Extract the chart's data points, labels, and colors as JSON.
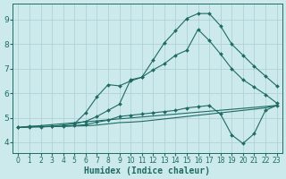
{
  "xlabel": "Humidex (Indice chaleur)",
  "bg_color": "#cce9ec",
  "grid_color": "#aacfd4",
  "line_color": "#1e6b63",
  "x_ticks": [
    0,
    1,
    2,
    3,
    4,
    5,
    6,
    7,
    8,
    9,
    10,
    11,
    12,
    13,
    14,
    15,
    16,
    17,
    18,
    19,
    20,
    21,
    22,
    23
  ],
  "y_ticks": [
    4,
    5,
    6,
    7,
    8,
    9
  ],
  "xlim": [
    -0.5,
    23.5
  ],
  "ylim": [
    3.55,
    9.65
  ],
  "lines": [
    {
      "x": [
        0,
        1,
        2,
        3,
        4,
        5,
        6,
        7,
        8,
        9,
        10,
        11,
        12,
        13,
        14,
        15,
        16,
        17,
        18,
        19,
        20,
        21,
        22,
        23
      ],
      "y": [
        4.6,
        4.65,
        4.65,
        4.65,
        4.7,
        4.75,
        4.85,
        5.05,
        5.3,
        5.55,
        6.55,
        6.65,
        7.35,
        8.05,
        8.55,
        9.05,
        9.25,
        9.25,
        8.75,
        8.0,
        7.55,
        7.1,
        6.7,
        6.3
      ],
      "marker": true
    },
    {
      "x": [
        5,
        6,
        7,
        8,
        9,
        10,
        11,
        12,
        13,
        14,
        15,
        16,
        17,
        18,
        19,
        20,
        21,
        22,
        23
      ],
      "y": [
        4.75,
        5.2,
        5.85,
        6.35,
        6.3,
        6.5,
        6.65,
        6.95,
        7.2,
        7.55,
        7.75,
        8.6,
        8.15,
        7.6,
        7.0,
        6.55,
        6.25,
        5.95,
        5.6
      ],
      "marker": true
    },
    {
      "x": [
        0,
        1,
        2,
        3,
        4,
        5,
        6,
        7,
        8,
        9,
        10,
        11,
        12,
        13,
        14,
        15,
        16,
        17,
        18,
        19,
        20,
        21,
        22,
        23
      ],
      "y": [
        4.6,
        4.62,
        4.63,
        4.64,
        4.65,
        4.66,
        4.67,
        4.7,
        4.75,
        4.8,
        4.82,
        4.85,
        4.9,
        4.95,
        5.0,
        5.05,
        5.1,
        5.15,
        5.2,
        5.25,
        5.3,
        5.35,
        5.4,
        5.5
      ],
      "marker": false
    },
    {
      "x": [
        0,
        23
      ],
      "y": [
        4.6,
        5.5
      ],
      "marker": false
    },
    {
      "x": [
        0,
        1,
        2,
        3,
        4,
        5,
        6,
        7,
        8,
        9,
        10,
        11,
        12,
        13,
        14,
        15,
        16,
        17,
        18,
        19,
        20,
        21,
        22,
        23
      ],
      "y": [
        4.6,
        4.62,
        4.63,
        4.64,
        4.65,
        4.68,
        4.72,
        4.82,
        4.9,
        5.05,
        5.1,
        5.15,
        5.2,
        5.25,
        5.3,
        5.4,
        5.45,
        5.5,
        5.15,
        4.3,
        3.95,
        4.35,
        5.3,
        5.5
      ],
      "marker": true
    }
  ]
}
